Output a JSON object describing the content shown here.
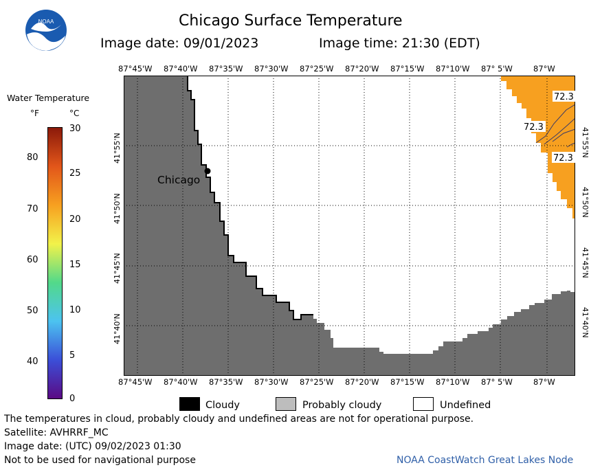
{
  "header": {
    "title": "Chicago Surface Temperature",
    "image_date": "Image date: 09/01/2023",
    "image_time": "Image time: 21:30 (EDT)"
  },
  "logo": {
    "text": "NOAA"
  },
  "legend": {
    "title": "Water Temperature",
    "unit_f": "°F",
    "unit_c": "°C",
    "fahrenheit_ticks": [
      "80",
      "70",
      "60",
      "50",
      "40"
    ],
    "celsius_ticks": [
      "30",
      "25",
      "20",
      "15",
      "10",
      "5",
      "0"
    ],
    "colors": [
      "#5a0a84",
      "#3b4fd8",
      "#4cc3f0",
      "#52d98a",
      "#f2f24a",
      "#f7a020",
      "#e2561a",
      "#8b1a0a"
    ]
  },
  "map": {
    "longitudes": [
      "87°45'W",
      "87°40'W",
      "87°35'W",
      "87°30'W",
      "87°25'W",
      "87°20'W",
      "87°15'W",
      "87°10'W",
      "87° 5'W",
      "87°W"
    ],
    "latitudes": [
      "41°55'N",
      "41°50'N",
      "41°45'N",
      "41°40'N"
    ],
    "city_label": "Chicago",
    "temperature_labels": [
      "72.3",
      "72.3",
      "72.3"
    ],
    "land_color": "#6e6e6e",
    "water_color": "#f7a020"
  },
  "cloud_legend": {
    "cloudy": "Cloudy",
    "probably_cloudy": "Probably cloudy",
    "undefined": "Undefined"
  },
  "footer": {
    "disclaimer": "The temperatures in cloud, probably cloudy and undefined areas are not for operational purpose.",
    "satellite": "Satellite: AVHRRF_MC",
    "utc_date": "Image date: (UTC) 09/02/2023  01:30",
    "navigation": "Not to be used for navigational purpose",
    "credit": "NOAA CoastWatch Great Lakes Node"
  }
}
